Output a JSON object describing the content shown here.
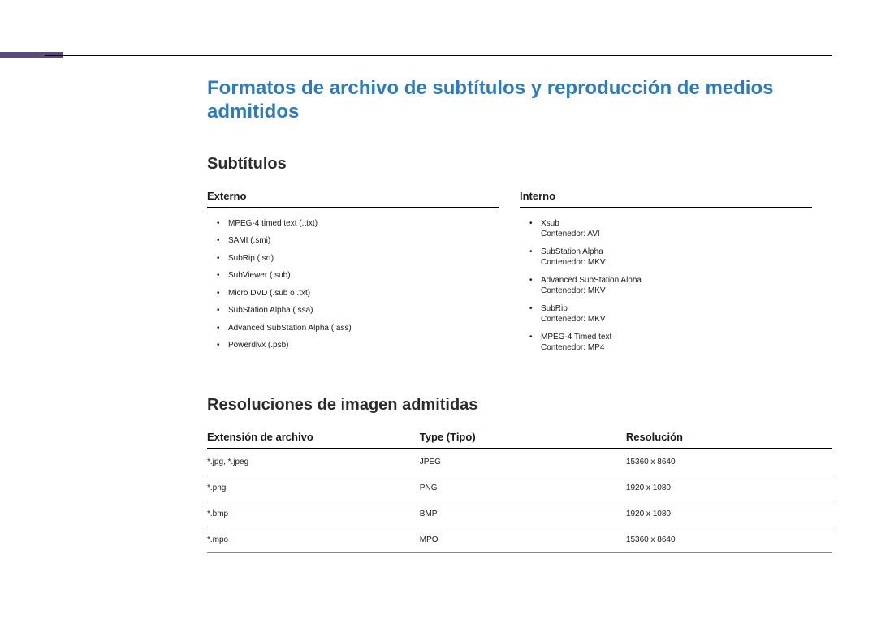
{
  "page": {
    "title": "Formatos de archivo de subtítulos y reproducción de medios admitidos",
    "title_color": "#2b7bbd",
    "side_mark_color": "#5a4a7a"
  },
  "subtitles": {
    "heading": "Subtítulos",
    "externo": {
      "label": "Externo",
      "items": [
        {
          "text": "MPEG-4 timed text (.ttxt)"
        },
        {
          "text": "SAMI (.smi)"
        },
        {
          "text": "SubRip (.srt)"
        },
        {
          "text": "SubViewer (.sub)"
        },
        {
          "text": "Micro DVD (.sub o .txt)"
        },
        {
          "text": "SubStation Alpha (.ssa)"
        },
        {
          "text": "Advanced SubStation Alpha (.ass)"
        },
        {
          "text": "Powerdivx (.psb)"
        }
      ]
    },
    "interno": {
      "label": "Interno",
      "items": [
        {
          "text": "Xsub",
          "note": "Contenedor: AVI"
        },
        {
          "text": "SubStation Alpha",
          "note": "Contenedor: MKV"
        },
        {
          "text": "Advanced SubStation Alpha",
          "note": "Contenedor: MKV"
        },
        {
          "text": "SubRip",
          "note": "Contenedor: MKV"
        },
        {
          "text": "MPEG-4 Timed text",
          "note": "Contenedor: MP4"
        }
      ]
    }
  },
  "resolutions": {
    "heading": "Resoluciones de imagen admitidas",
    "columns": {
      "extension": "Extensión de archivo",
      "type": "Type (Tipo)",
      "resolution": "Resolución"
    },
    "rows": [
      {
        "ext": "*.jpg, *.jpeg",
        "type": "JPEG",
        "res": "15360 x 8640"
      },
      {
        "ext": "*.png",
        "type": "PNG",
        "res": "1920 x 1080"
      },
      {
        "ext": "*.bmp",
        "type": "BMP",
        "res": "1920 x 1080"
      },
      {
        "ext": "*.mpo",
        "type": "MPO",
        "res": "15360 x 8640"
      }
    ]
  }
}
